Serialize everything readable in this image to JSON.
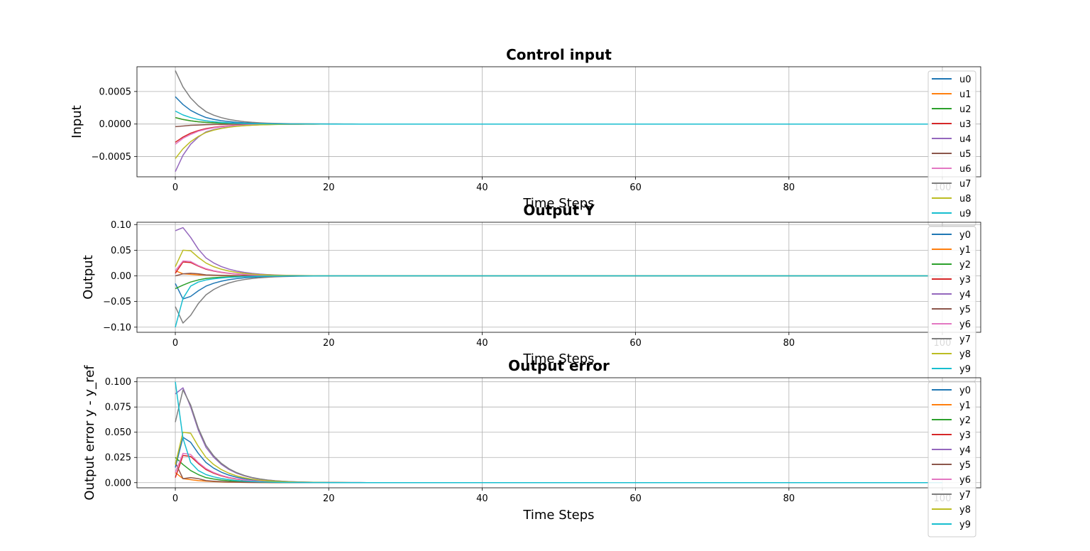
{
  "chart_data": [
    {
      "type": "line",
      "title": "Control input",
      "xlabel": "Time Steps",
      "ylabel": "Input",
      "xlim": [
        -5,
        105
      ],
      "ylim": [
        -0.00081,
        0.00088
      ],
      "xticks": [
        0,
        20,
        40,
        60,
        80,
        100
      ],
      "xtick_labels": [
        "0",
        "20",
        "40",
        "60",
        "80",
        "100"
      ],
      "yticks": [
        -0.0005,
        0.0,
        0.0005
      ],
      "ytick_labels": [
        "−0.0005",
        "0.0000",
        "0.0005"
      ],
      "grid": true,
      "legend_position": "right",
      "decay": 0.72,
      "n_steps": 100,
      "series": [
        {
          "name": "u0",
          "color": "#1f77b4",
          "initial": [
            0.00042,
            0.0003,
            0.00021,
            0.00015,
            0.0001
          ]
        },
        {
          "name": "u1",
          "color": "#ff7f0e",
          "initial": [
            0.0001,
            7e-05,
            5e-05,
            3.5e-05,
            2.5e-05
          ]
        },
        {
          "name": "u2",
          "color": "#2ca02c",
          "initial": [
            0.0001,
            7e-05,
            5e-05,
            3.5e-05,
            2.5e-05
          ]
        },
        {
          "name": "u3",
          "color": "#d62728",
          "initial": [
            -0.00028,
            -0.0002,
            -0.00014,
            -0.0001,
            -7e-05
          ]
        },
        {
          "name": "u4",
          "color": "#9467bd",
          "initial": [
            -0.00073,
            -0.00048,
            -0.00031,
            -0.0002,
            -0.00012
          ]
        },
        {
          "name": "u5",
          "color": "#8c564b",
          "initial": [
            -4e-05,
            -3e-05,
            -2e-05,
            -1.5e-05,
            -1e-05
          ]
        },
        {
          "name": "u6",
          "color": "#e377c2",
          "initial": [
            -0.00031,
            -0.00022,
            -0.00016,
            -0.00011,
            -8e-05
          ]
        },
        {
          "name": "u7",
          "color": "#7f7f7f",
          "initial": [
            0.00082,
            0.00057,
            0.0004,
            0.00028,
            0.00019
          ]
        },
        {
          "name": "u8",
          "color": "#bcbd22",
          "initial": [
            -0.00053,
            -0.00038,
            -0.00027,
            -0.00019,
            -0.00013
          ]
        },
        {
          "name": "u9",
          "color": "#17becf",
          "initial": [
            0.0002,
            0.00014,
            0.0001,
            7e-05,
            5e-05
          ]
        }
      ]
    },
    {
      "type": "line",
      "title": "Output Y",
      "xlabel": "Time Steps",
      "ylabel": "Output",
      "xlim": [
        -5,
        105
      ],
      "ylim": [
        -0.11,
        0.1045
      ],
      "xticks": [
        0,
        20,
        40,
        60,
        80,
        100
      ],
      "xtick_labels": [
        "0",
        "20",
        "40",
        "60",
        "80",
        "100"
      ],
      "yticks": [
        -0.1,
        -0.05,
        0.0,
        0.05,
        0.1
      ],
      "ytick_labels": [
        "−0.10",
        "−0.05",
        "0.00",
        "0.05",
        "0.10"
      ],
      "grid": true,
      "legend_position": "right",
      "decay": 0.72,
      "n_steps": 100,
      "series": [
        {
          "name": "y0",
          "color": "#1f77b4",
          "initial": [
            -0.015,
            -0.045,
            -0.04,
            -0.029,
            -0.02
          ]
        },
        {
          "name": "y1",
          "color": "#ff7f0e",
          "initial": [
            0.01,
            0.004,
            0.003,
            0.002,
            0.0015
          ]
        },
        {
          "name": "y2",
          "color": "#2ca02c",
          "initial": [
            -0.025,
            -0.018,
            -0.012,
            -0.008,
            -0.005
          ]
        },
        {
          "name": "y3",
          "color": "#d62728",
          "initial": [
            0.005,
            0.027,
            0.026,
            0.019,
            0.013
          ]
        },
        {
          "name": "y4",
          "color": "#9467bd",
          "initial": [
            0.088,
            0.094,
            0.075,
            0.052,
            0.035
          ]
        },
        {
          "name": "y5",
          "color": "#8c564b",
          "initial": [
            0.0,
            0.004,
            0.005,
            0.004,
            0.002
          ]
        },
        {
          "name": "y6",
          "color": "#e377c2",
          "initial": [
            0.01,
            0.029,
            0.028,
            0.02,
            0.014
          ]
        },
        {
          "name": "y7",
          "color": "#7f7f7f",
          "initial": [
            -0.06,
            -0.092,
            -0.077,
            -0.054,
            -0.037
          ]
        },
        {
          "name": "y8",
          "color": "#bcbd22",
          "initial": [
            0.018,
            0.05,
            0.049,
            0.036,
            0.025
          ]
        },
        {
          "name": "y9",
          "color": "#17becf",
          "initial": [
            -0.1,
            -0.044,
            -0.02,
            -0.012,
            -0.008
          ]
        }
      ]
    },
    {
      "type": "line",
      "title": "Output error",
      "xlabel": "Time Steps",
      "ylabel": "Output error y - y_ref",
      "xlim": [
        -5,
        105
      ],
      "ylim": [
        -0.0051,
        0.104
      ],
      "xticks": [
        0,
        20,
        40,
        60,
        80,
        100
      ],
      "xtick_labels": [
        "0",
        "20",
        "40",
        "60",
        "80",
        "100"
      ],
      "yticks": [
        0.0,
        0.025,
        0.05,
        0.075,
        0.1
      ],
      "ytick_labels": [
        "0.000",
        "0.025",
        "0.050",
        "0.075",
        "0.100"
      ],
      "grid": true,
      "legend_position": "right",
      "decay": 0.72,
      "n_steps": 100,
      "series": [
        {
          "name": "y0",
          "color": "#1f77b4",
          "initial": [
            0.015,
            0.045,
            0.04,
            0.029,
            0.02
          ]
        },
        {
          "name": "y1",
          "color": "#ff7f0e",
          "initial": [
            0.01,
            0.004,
            0.003,
            0.002,
            0.0015
          ]
        },
        {
          "name": "y2",
          "color": "#2ca02c",
          "initial": [
            0.025,
            0.018,
            0.012,
            0.008,
            0.005
          ]
        },
        {
          "name": "y3",
          "color": "#d62728",
          "initial": [
            0.005,
            0.027,
            0.026,
            0.019,
            0.013
          ]
        },
        {
          "name": "y4",
          "color": "#9467bd",
          "initial": [
            0.088,
            0.094,
            0.075,
            0.052,
            0.035
          ]
        },
        {
          "name": "y5",
          "color": "#8c564b",
          "initial": [
            0.02,
            0.004,
            0.005,
            0.004,
            0.002
          ]
        },
        {
          "name": "y6",
          "color": "#e377c2",
          "initial": [
            0.01,
            0.029,
            0.028,
            0.02,
            0.014
          ]
        },
        {
          "name": "y7",
          "color": "#7f7f7f",
          "initial": [
            0.06,
            0.092,
            0.077,
            0.054,
            0.037
          ]
        },
        {
          "name": "y8",
          "color": "#bcbd22",
          "initial": [
            0.018,
            0.05,
            0.049,
            0.036,
            0.025
          ]
        },
        {
          "name": "y9",
          "color": "#17becf",
          "initial": [
            0.1,
            0.044,
            0.02,
            0.012,
            0.008
          ]
        }
      ]
    }
  ]
}
